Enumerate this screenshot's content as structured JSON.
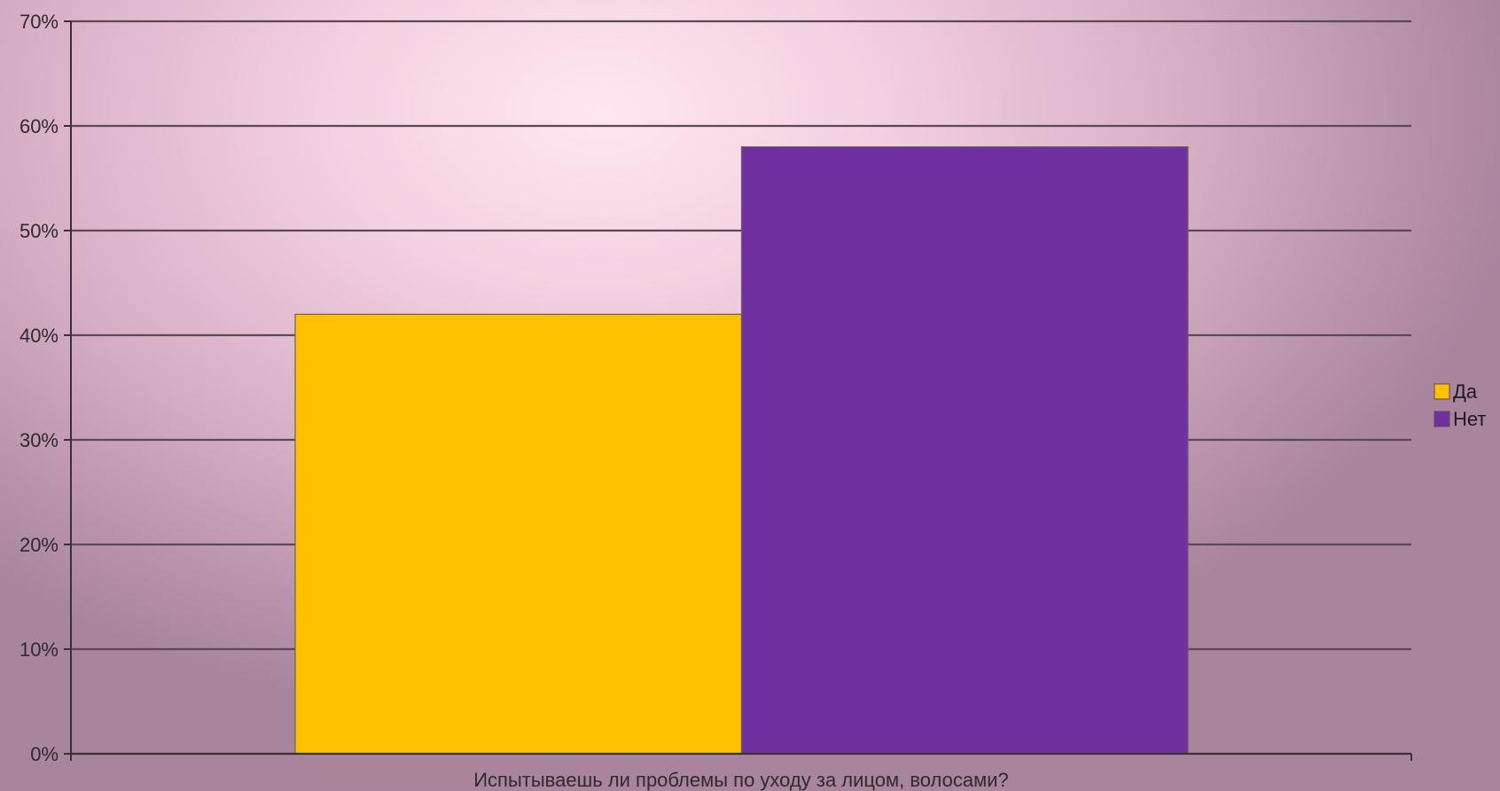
{
  "chart_data": {
    "type": "bar",
    "title": "",
    "xlabel": "",
    "ylabel": "",
    "categories": [
      "Испытываешь ли проблемы по уходу за лицом, волосами?"
    ],
    "series": [
      {
        "name": "Да",
        "color": "#ffc000",
        "values": [
          42
        ]
      },
      {
        "name": "Нет",
        "color": "#7030a0",
        "values": [
          58
        ]
      }
    ],
    "ylim": [
      0,
      70
    ],
    "yticks": [
      0,
      10,
      20,
      30,
      40,
      50,
      60,
      70
    ],
    "ytick_labels": [
      "0%",
      "10%",
      "20%",
      "30%",
      "40%",
      "50%",
      "60%",
      "70%"
    ],
    "value_format": "percent",
    "grid": true,
    "legend_position": "right"
  }
}
